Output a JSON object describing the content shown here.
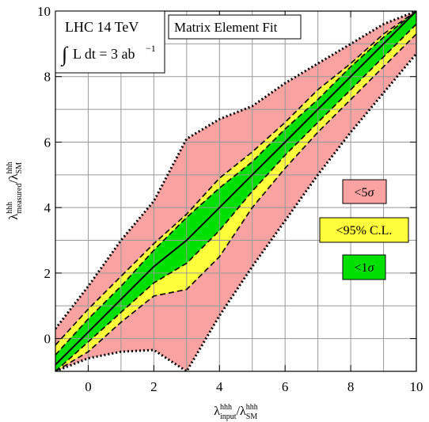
{
  "chart_data": {
    "type": "area",
    "title": "",
    "xlabel": {
      "main": "λ",
      "sup1": "hhh",
      "sub1": "input",
      "slash": "/λ",
      "sup2": "hhh",
      "sub2": "SM"
    },
    "ylabel": {
      "main": "λ",
      "sup1": "hhh",
      "sub1": "measured",
      "slash": "/λ",
      "sup2": "hhh",
      "sub2": "SM"
    },
    "xlim": [
      -1,
      10
    ],
    "ylim": [
      -1,
      10
    ],
    "grid": true,
    "x_ticks": [
      0,
      2,
      4,
      6,
      8,
      10
    ],
    "y_ticks": [
      0,
      2,
      4,
      6,
      8,
      10
    ],
    "x_tick_labels": [
      "0",
      "2",
      "4",
      "6",
      "8",
      "10"
    ],
    "y_tick_labels": [
      "0",
      "2",
      "4",
      "6",
      "8",
      "10"
    ],
    "colors": {
      "five_sigma": "#f9a2a2",
      "ninety_five_cl": "#ffff3c",
      "one_sigma": "#00e000",
      "grid": "#999999"
    },
    "annotations": {
      "energy": "LHC 14 TeV",
      "luminosity_int": "∫",
      "luminosity_text": "L dt = 3 ab",
      "luminosity_exp": "−1",
      "method": "Matrix Element Fit"
    },
    "legend": {
      "placement": "right",
      "five_sigma": {
        "prefix": "<5",
        "sym": "σ"
      },
      "ninety_five_cl": {
        "text": "<95% C.L."
      },
      "one_sigma": {
        "prefix": "<1",
        "sym": "σ"
      }
    },
    "series": [
      {
        "name": "<5σ",
        "band": "five_sigma",
        "x": [
          -1,
          0,
          1,
          2,
          3,
          4,
          5,
          6,
          7,
          8,
          9,
          10
        ],
        "upper": [
          0.3,
          1.6,
          3.0,
          4.2,
          6.1,
          6.7,
          7.1,
          7.8,
          8.4,
          9.0,
          9.6,
          10.0
        ],
        "lower": [
          -1.0,
          -0.6,
          -0.4,
          -0.35,
          -1.0,
          0.7,
          2.2,
          3.6,
          5.0,
          6.3,
          7.5,
          8.7
        ]
      },
      {
        "name": "<95% C.L.",
        "band": "ninety_five_cl",
        "x": [
          -1,
          0,
          1,
          2,
          3,
          4,
          5,
          6,
          7,
          8,
          9,
          10
        ],
        "upper": [
          -0.2,
          0.9,
          1.9,
          2.9,
          3.8,
          4.9,
          5.7,
          6.6,
          7.6,
          8.4,
          9.3,
          10.0
        ],
        "lower": [
          -1.0,
          -0.4,
          0.5,
          1.3,
          1.5,
          2.5,
          4.0,
          5.2,
          6.3,
          7.3,
          8.3,
          9.3
        ]
      },
      {
        "name": "<1σ",
        "band": "one_sigma",
        "x": [
          -1,
          0,
          1,
          2,
          3,
          4,
          5,
          6,
          7,
          8,
          9,
          10
        ],
        "upper": [
          -0.5,
          0.6,
          1.6,
          2.7,
          3.7,
          4.6,
          5.4,
          6.4,
          7.3,
          8.3,
          9.2,
          10.0
        ],
        "lower": [
          -1.0,
          -0.1,
          0.8,
          1.7,
          2.3,
          3.3,
          4.5,
          5.6,
          6.6,
          7.6,
          8.6,
          9.6
        ]
      },
      {
        "name": "",
        "band": "central",
        "x": [
          -1,
          0,
          1,
          2,
          3,
          4,
          5,
          6,
          7,
          8,
          9,
          10
        ],
        "y": [
          -0.8,
          0.2,
          1.2,
          2.2,
          3.0,
          4.0,
          5.0,
          6.0,
          7.0,
          8.0,
          9.0,
          10.0
        ]
      }
    ]
  }
}
